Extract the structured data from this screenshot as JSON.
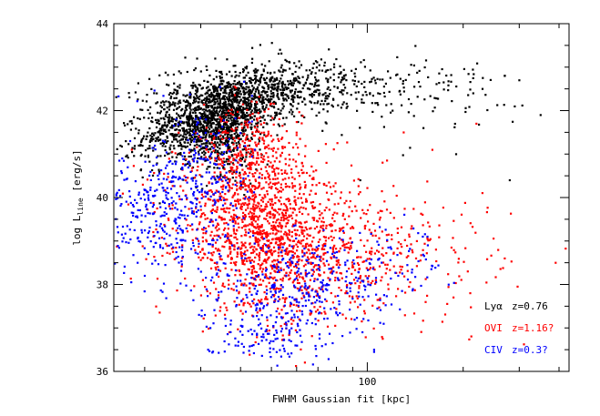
{
  "chart_data": {
    "type": "scatter",
    "x_scale": "log",
    "y_scale": "linear",
    "xlim": [
      16,
      430
    ],
    "ylim": [
      36,
      44
    ],
    "xlabel": "FWHM Gaussian fit [kpc]",
    "ylabel": {
      "prefix": "log L",
      "subscript": "line",
      "suffix": " [erg/s]"
    },
    "y_ticks": [
      "36",
      "38",
      "40",
      "42",
      "44"
    ],
    "y_tick_values": [
      36,
      38,
      40,
      42,
      44
    ],
    "x_ticks": [
      "100"
    ],
    "x_tick_values": [
      100
    ],
    "x_minor_ticks": [
      20,
      30,
      40,
      50,
      60,
      70,
      80,
      90,
      200,
      300,
      400
    ],
    "legend_position": "bottom-right",
    "series": [
      {
        "name": "Lyα z=0.76",
        "label_parts": [
          "Lyα",
          "z=0.76"
        ],
        "color": "#000000",
        "clusters": [
          {
            "n": 1400,
            "x": [
              33,
              0.11
            ],
            "y": [
              41.85,
              0.45
            ],
            "corr": 0.5
          },
          {
            "n": 400,
            "x": [
              42,
              0.17
            ],
            "y": [
              42.45,
              0.35
            ],
            "corr": 0.2
          },
          {
            "n": 260,
            "x": [
              70,
              0.16
            ],
            "y": [
              42.55,
              0.35
            ],
            "corr": 0.0
          },
          {
            "n": 60,
            "x": [
              170,
              0.18
            ],
            "y": [
              42.3,
              0.5
            ],
            "corr": 0.0
          },
          {
            "n": 180,
            "x": [
              36,
              0.05
            ],
            "y": [
              41.1,
              0.4
            ],
            "corr": 0.0
          }
        ],
        "points": [
          [
            300,
            42.7
          ],
          [
            350,
            41.9
          ],
          [
            270,
            42.8
          ],
          [
            230,
            42.5
          ],
          [
            215,
            42.4
          ],
          [
            95,
            40.4
          ],
          [
            280,
            40.4
          ],
          [
            190,
            41.0
          ],
          [
            150,
            41.6
          ],
          [
            120,
            42.0
          ]
        ]
      },
      {
        "name": "OVI z=1.16?",
        "label_parts": [
          "OVI",
          "z=1.16?"
        ],
        "color": "#ff0000",
        "clusters": [
          {
            "n": 1400,
            "x": [
              48,
              0.14
            ],
            "y": [
              39.1,
              0.9
            ],
            "corr": -0.2
          },
          {
            "n": 350,
            "x": [
              43,
              0.08
            ],
            "y": [
              40.9,
              0.6
            ],
            "corr": 0.0
          },
          {
            "n": 260,
            "x": [
              85,
              0.17
            ],
            "y": [
              38.8,
              0.8
            ],
            "corr": 0.0
          },
          {
            "n": 100,
            "x": [
              160,
              0.18
            ],
            "y": [
              38.7,
              0.7
            ],
            "corr": 0.0
          }
        ],
        "points": [
          [
            390,
            38.5
          ],
          [
            270,
            38.6
          ],
          [
            220,
            41.7
          ],
          [
            160,
            41.1
          ],
          [
            130,
            41.5
          ]
        ]
      },
      {
        "name": "CIV z=0.3?",
        "label_parts": [
          "CIV",
          "z=0.3?"
        ],
        "color": "#0000ff",
        "clusters": [
          {
            "n": 280,
            "x": [
              22,
              0.1
            ],
            "y": [
              39.6,
              0.65
            ],
            "corr": 0.0
          },
          {
            "n": 200,
            "x": [
              30,
              0.08
            ],
            "y": [
              40.6,
              0.8
            ],
            "corr": 0.0
          },
          {
            "n": 350,
            "x": [
              60,
              0.15
            ],
            "y": [
              38.0,
              0.6
            ],
            "corr": 0.0
          },
          {
            "n": 120,
            "x": [
              48,
              0.1
            ],
            "y": [
              36.9,
              0.35
            ],
            "corr": 0.0
          },
          {
            "n": 60,
            "x": [
              110,
              0.1
            ],
            "y": [
              38.6,
              0.45
            ],
            "corr": 0.0
          }
        ],
        "points": [
          [
            17,
            40.9
          ],
          [
            18,
            41.3
          ],
          [
            16.5,
            39.2
          ],
          [
            19,
            38.5
          ],
          [
            20,
            38.2
          ],
          [
            105,
            36.45
          ],
          [
            105,
            36.5
          ],
          [
            125,
            38.2
          ]
        ]
      }
    ]
  }
}
